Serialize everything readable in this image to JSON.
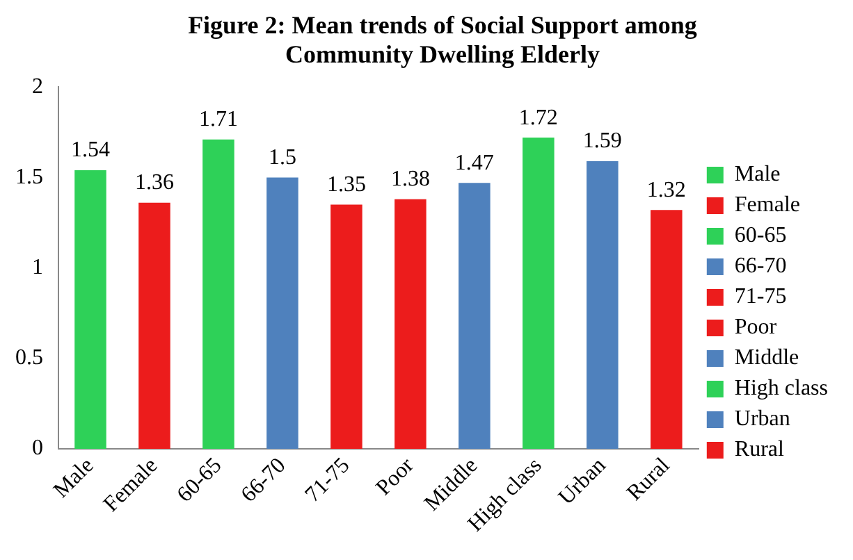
{
  "chart_data": {
    "type": "bar",
    "title": "Figure 2: Mean trends  of Social Support  among Community Dwelling Elderly",
    "categories": [
      "Male",
      "Female",
      "60-65",
      "66-70",
      "71-75",
      "Poor",
      "Middle",
      "High class",
      "Urban",
      "Rural"
    ],
    "series": [
      {
        "name": "Male",
        "color": "#2ed158",
        "values": [
          1.54,
          null,
          null,
          null,
          null,
          null,
          null,
          null,
          null,
          null
        ]
      },
      {
        "name": "Female",
        "color": "#ec1c1c",
        "values": [
          null,
          1.36,
          null,
          null,
          null,
          null,
          null,
          null,
          null,
          null
        ]
      },
      {
        "name": "60-65",
        "color": "#2ed158",
        "values": [
          null,
          null,
          1.71,
          null,
          null,
          null,
          null,
          null,
          null,
          null
        ]
      },
      {
        "name": "66-70",
        "color": "#4f81bd",
        "values": [
          null,
          null,
          null,
          1.5,
          null,
          null,
          null,
          null,
          null,
          null
        ]
      },
      {
        "name": "71-75",
        "color": "#ec1c1c",
        "values": [
          null,
          null,
          null,
          null,
          1.35,
          null,
          null,
          null,
          null,
          null
        ]
      },
      {
        "name": "Poor",
        "color": "#ec1c1c",
        "values": [
          null,
          null,
          null,
          null,
          null,
          1.38,
          null,
          null,
          null,
          null
        ]
      },
      {
        "name": "Middle",
        "color": "#4f81bd",
        "values": [
          null,
          null,
          null,
          null,
          null,
          null,
          1.47,
          null,
          null,
          null
        ]
      },
      {
        "name": "High class",
        "color": "#2ed158",
        "values": [
          null,
          null,
          null,
          null,
          null,
          null,
          null,
          1.72,
          null,
          null
        ]
      },
      {
        "name": "Urban",
        "color": "#4f81bd",
        "values": [
          null,
          null,
          null,
          null,
          null,
          null,
          null,
          null,
          1.59,
          null
        ]
      },
      {
        "name": "Rural",
        "color": "#ec1c1c",
        "values": [
          null,
          null,
          null,
          null,
          null,
          null,
          null,
          null,
          null,
          1.32
        ]
      }
    ],
    "ylim": [
      0,
      2
    ],
    "yticks": [
      0,
      0.5,
      1,
      1.5,
      2
    ],
    "grid": false,
    "legend": "right",
    "data_labels": true
  }
}
